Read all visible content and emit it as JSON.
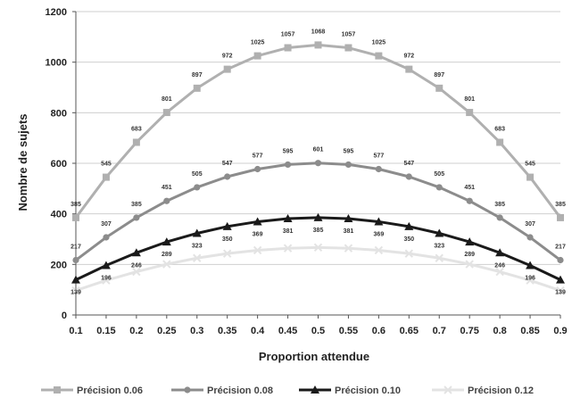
{
  "chart_data": {
    "type": "line",
    "title": "",
    "xlabel": "Proportion attendue",
    "ylabel": "Nombre de sujets",
    "ylim": [
      0,
      1200
    ],
    "yticks": [
      "0",
      "200",
      "400",
      "600",
      "800",
      "1000",
      "1200"
    ],
    "grid": true,
    "legend_position": "bottom",
    "x": [
      "0.1",
      "0.15",
      "0.2",
      "0.25",
      "0.3",
      "0.35",
      "0.4",
      "0.45",
      "0.5",
      "0.55",
      "0.6",
      "0.65",
      "0.7",
      "0.75",
      "0.8",
      "0.85",
      "0.9"
    ],
    "series": [
      {
        "name": "Précision 0.06",
        "color": "#b0b0b0",
        "marker": "square",
        "values": [
          385,
          545,
          683,
          801,
          897,
          972,
          1025,
          1057,
          1068,
          1057,
          1025,
          972,
          897,
          801,
          683,
          545,
          385
        ],
        "labels": [
          "385",
          "545",
          "683",
          "801",
          "897",
          "972",
          "1025",
          "1057",
          "1068",
          "1057",
          "1025",
          "972",
          "897",
          "801",
          "683",
          "545",
          "385"
        ]
      },
      {
        "name": "Précision 0.08",
        "color": "#8c8c8c",
        "marker": "circle",
        "values": [
          217,
          307,
          385,
          451,
          505,
          547,
          577,
          595,
          601,
          595,
          577,
          547,
          505,
          451,
          385,
          307,
          217
        ],
        "labels": [
          "217",
          "307",
          "385",
          "451",
          "505",
          "547",
          "577",
          "595",
          "601",
          "595",
          "577",
          "547",
          "505",
          "451",
          "385",
          "307",
          "217"
        ]
      },
      {
        "name": "Précision 0.10",
        "color": "#1a1a1a",
        "marker": "triangle",
        "values": [
          139,
          196,
          246,
          289,
          323,
          350,
          369,
          381,
          385,
          381,
          369,
          350,
          323,
          289,
          246,
          196,
          139
        ],
        "labels": [
          "139",
          "196",
          "246",
          "289",
          "323",
          "350",
          "369",
          "381",
          "385",
          "381",
          "369",
          "350",
          "323",
          "289",
          "246",
          "196",
          "139"
        ]
      },
      {
        "name": "Précision 0.12",
        "color": "#e3e3e3",
        "marker": "cross",
        "values": [
          97,
          137,
          171,
          201,
          225,
          243,
          256,
          264,
          267,
          264,
          256,
          243,
          225,
          201,
          171,
          137,
          97
        ],
        "labels": []
      }
    ]
  }
}
